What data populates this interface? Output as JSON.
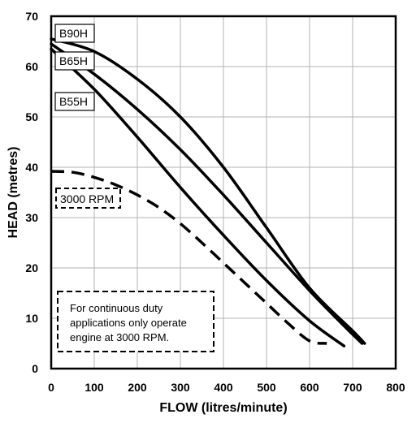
{
  "chart_data": {
    "type": "line",
    "xlabel": "FLOW (litres/minute)",
    "ylabel": "HEAD (metres)",
    "xlim": [
      0,
      800
    ],
    "ylim": [
      0,
      70
    ],
    "x_ticks": [
      "0",
      "100",
      "200",
      "300",
      "400",
      "500",
      "600",
      "700",
      "800"
    ],
    "y_ticks": [
      "0",
      "10",
      "20",
      "30",
      "40",
      "50",
      "60",
      "70"
    ],
    "grid": true,
    "series": [
      {
        "name": "B90H",
        "style": "solid",
        "points": [
          [
            0,
            65.5
          ],
          [
            100,
            63
          ],
          [
            200,
            57.5
          ],
          [
            300,
            50
          ],
          [
            400,
            40
          ],
          [
            500,
            28
          ],
          [
            600,
            16
          ],
          [
            700,
            7.5
          ],
          [
            728,
            5
          ]
        ]
      },
      {
        "name": "B65H",
        "style": "solid",
        "points": [
          [
            0,
            64.5
          ],
          [
            100,
            58.5
          ],
          [
            200,
            51.5
          ],
          [
            300,
            43.5
          ],
          [
            400,
            34.5
          ],
          [
            500,
            25
          ],
          [
            600,
            15.5
          ],
          [
            680,
            8.5
          ],
          [
            722,
            5
          ]
        ]
      },
      {
        "name": "B55H",
        "style": "solid",
        "points": [
          [
            0,
            63.5
          ],
          [
            100,
            55.5
          ],
          [
            200,
            46
          ],
          [
            300,
            36
          ],
          [
            400,
            26.5
          ],
          [
            500,
            17.5
          ],
          [
            600,
            9.5
          ],
          [
            680,
            4.5
          ]
        ]
      },
      {
        "name": "3000 RPM",
        "style": "dashed",
        "points": [
          [
            0,
            39.2
          ],
          [
            50,
            39
          ],
          [
            100,
            38
          ],
          [
            150,
            36.5
          ],
          [
            200,
            34.5
          ],
          [
            250,
            32
          ],
          [
            300,
            28.8
          ],
          [
            350,
            25
          ],
          [
            400,
            21
          ],
          [
            450,
            17
          ],
          [
            500,
            13
          ],
          [
            550,
            9
          ],
          [
            600,
            5.5
          ],
          [
            640,
            5
          ]
        ]
      }
    ],
    "curve_labels": [
      "B90H",
      "B65H",
      "B55H",
      "3000 RPM"
    ],
    "annotation": [
      "For continuous duty",
      "applications only operate",
      "engine at 3000 RPM."
    ]
  }
}
